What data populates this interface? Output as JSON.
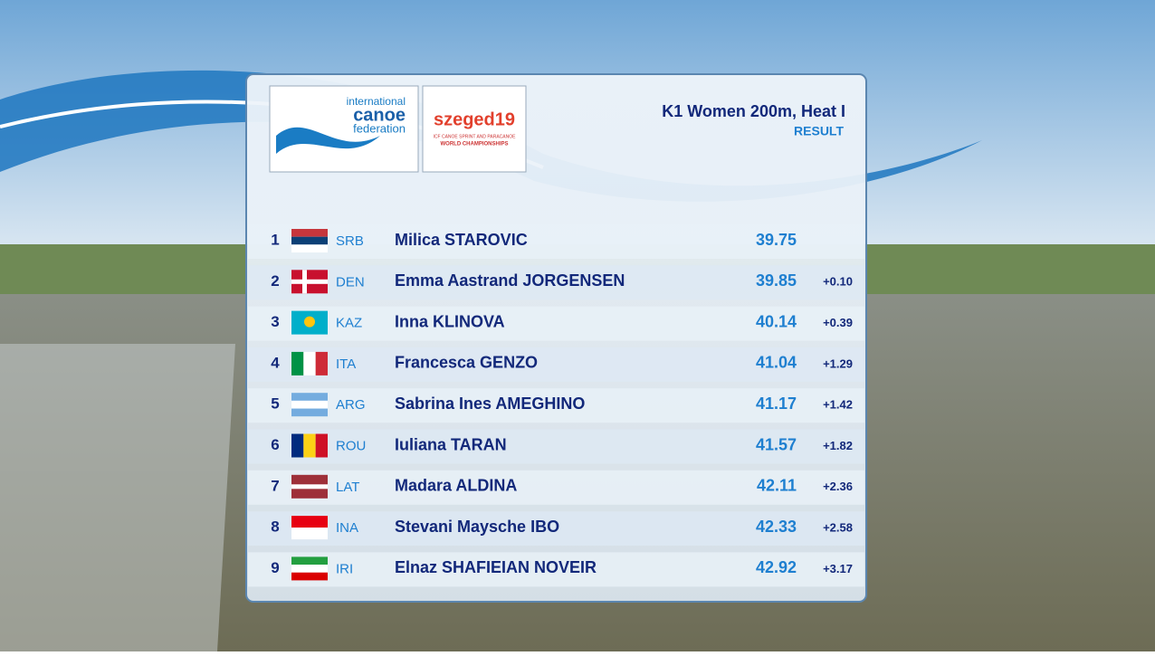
{
  "logos": {
    "icf": {
      "line1": "international",
      "line2": "canoe",
      "line3": "federation"
    },
    "event": {
      "name": "szeged19",
      "line1": "ICF CANOE SPRINT AND PARACANOE",
      "line2": "WORLD CHAMPIONSHIPS"
    }
  },
  "header": {
    "title": "K1 Women 200m, Heat I",
    "subtitle": "RESULT"
  },
  "table": {
    "rows": [
      [
        "1",
        "SRB",
        "Milica STAROVIC",
        "39.75",
        null
      ],
      [
        "2",
        "DEN",
        "Emma Aastrand JORGENSEN",
        "39.85",
        "+0.10"
      ],
      [
        "3",
        "KAZ",
        "Inna KLINOVA",
        "40.14",
        "+0.39"
      ],
      [
        "4",
        "ITA",
        "Francesca GENZO",
        "41.04",
        "+1.29"
      ],
      [
        "5",
        "ARG",
        "Sabrina Ines AMEGHINO",
        "41.17",
        "+1.42"
      ],
      [
        "6",
        "ROU",
        "Iuliana TARAN",
        "41.57",
        "+1.82"
      ],
      [
        "7",
        "LAT",
        "Madara ALDINA",
        "42.11",
        "+2.36"
      ],
      [
        "8",
        "INA",
        "Stevani Maysche IBO",
        "42.33",
        "+2.58"
      ],
      [
        "9",
        "IRI",
        "Elnaz SHAFIEIAN NOVEIR",
        "42.92",
        "+3.17"
      ]
    ]
  }
}
